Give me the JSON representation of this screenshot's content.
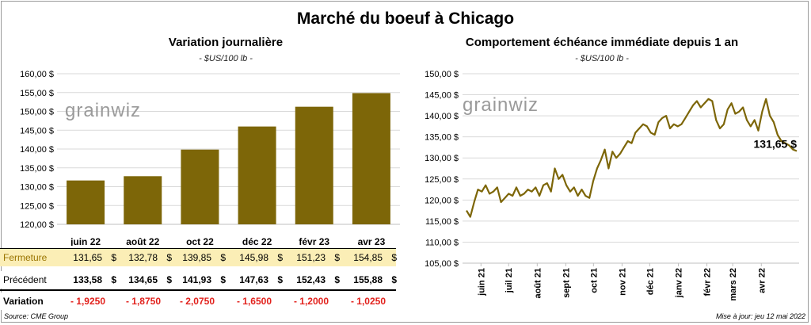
{
  "title": "Marché du boeuf à Chicago",
  "colors": {
    "bar": "#7d6608",
    "line": "#7d6608",
    "highlight": "#fbeeb6",
    "negative": "#e2211c",
    "watermark": "#9a9a9a"
  },
  "watermark": "grainwiz",
  "chart_data": [
    {
      "type": "bar",
      "title": "Variation journalière",
      "unit": "- $US/100 lb -",
      "categories": [
        "juin 22",
        "août 22",
        "oct 22",
        "déc 22",
        "févr 23",
        "avr 23"
      ],
      "values": [
        131.65,
        132.78,
        139.85,
        145.98,
        151.23,
        154.85
      ],
      "ylim": [
        120,
        160
      ],
      "yticks": [
        "120,00 $",
        "125,00 $",
        "130,00 $",
        "135,00 $",
        "140,00 $",
        "145,00 $",
        "150,00 $",
        "155,00 $",
        "160,00 $"
      ],
      "grid": true
    },
    {
      "type": "line",
      "title": "Comportement  échéance immédiate depuis 1 an",
      "unit": "- $US/100 lb -",
      "x_start": "2021-05-12",
      "x_end": "2022-05-12",
      "series": [
        {
          "values": [
            117.5,
            116.0,
            119.5,
            122.5,
            122.0,
            123.5,
            121.5,
            122.0,
            123.0,
            119.5,
            120.5,
            121.5,
            121.0,
            123.0,
            121.0,
            121.5,
            122.5,
            122.0,
            123.0,
            121.0,
            123.5,
            124.0,
            122.0,
            127.5,
            125.0,
            126.0,
            123.5,
            122.0,
            123.0,
            121.0,
            122.5,
            121.0,
            120.5,
            124.5,
            127.5,
            129.5,
            132.0,
            127.5,
            131.5,
            130.0,
            131.0,
            132.5,
            134.0,
            133.5,
            136.0,
            137.0,
            138.0,
            137.5,
            136.0,
            135.5,
            138.5,
            139.5,
            140.0,
            137.0,
            138.0,
            137.5,
            138.0,
            139.5,
            141.0,
            142.5,
            143.5,
            142.0,
            143.0,
            144.0,
            143.5,
            139.0,
            137.0,
            138.0,
            141.5,
            143.0,
            140.5,
            141.0,
            142.0,
            139.0,
            137.5,
            139.0,
            136.5,
            141.0,
            144.0,
            140.0,
            138.5,
            135.5,
            134.0,
            133.5,
            133.0,
            132.0,
            131.65
          ]
        }
      ],
      "end_label": "131,65 $",
      "ylim": [
        105,
        150
      ],
      "yticks": [
        "105,00 $",
        "110,00 $",
        "115,00 $",
        "120,00 $",
        "125,00 $",
        "130,00 $",
        "135,00 $",
        "140,00 $",
        "145,00 $",
        "150,00 $"
      ],
      "xticks": [
        "juin 21",
        "juil 21",
        "août 21",
        "sept 21",
        "oct 21",
        "nov 21",
        "déc 21",
        "janv 22",
        "févr 22",
        "mars 22",
        "avr 22"
      ],
      "grid": true
    }
  ],
  "table": {
    "rows": [
      {
        "label": "Fermeture",
        "cells": [
          [
            "131,65",
            "$"
          ],
          [
            "132,78",
            "$"
          ],
          [
            "139,85",
            "$"
          ],
          [
            "145,98",
            "$"
          ],
          [
            "151,23",
            "$"
          ],
          [
            "154,85",
            "$"
          ]
        ]
      },
      {
        "label": "Précédent",
        "cells": [
          [
            "133,58",
            "$"
          ],
          [
            "134,65",
            "$"
          ],
          [
            "141,93",
            "$"
          ],
          [
            "147,63",
            "$"
          ],
          [
            "152,43",
            "$"
          ],
          [
            "155,88",
            "$"
          ]
        ]
      },
      {
        "label": "Variation",
        "cells": [
          [
            "- 1,9250",
            ""
          ],
          [
            "- 1,8750",
            ""
          ],
          [
            "- 2,0750",
            ""
          ],
          [
            "- 1,6500",
            ""
          ],
          [
            "- 1,2000",
            ""
          ],
          [
            "- 1,0250",
            ""
          ]
        ]
      }
    ]
  },
  "footer": {
    "source": "Source: CME Group",
    "updated": "Mise à jour: jeu 12 mai 2022"
  }
}
